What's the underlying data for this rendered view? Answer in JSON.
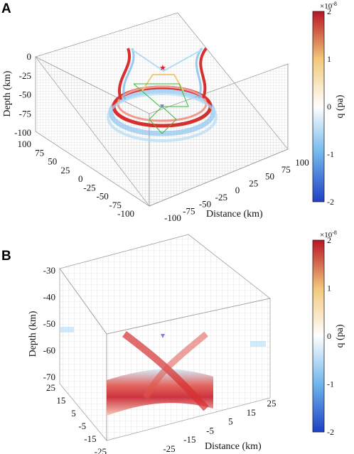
{
  "chart_data": [
    {
      "panel": "A",
      "type": "heatmap",
      "view": "3d-volume",
      "zlabel": "Depth (km)",
      "xlabel": "Distance (km)",
      "ylabel": "",
      "z_ticks": [
        "0",
        "-25",
        "-50",
        "-75",
        "-100"
      ],
      "y_ticks": [
        "100",
        "75",
        "50",
        "25",
        "0",
        "-25",
        "-50",
        "-75",
        "-100"
      ],
      "x_ticks": [
        "-100",
        "-75",
        "-50",
        "-25",
        "0",
        "25",
        "50",
        "75",
        "100"
      ],
      "xlim": [
        -100,
        100
      ],
      "ylim": [
        -100,
        100
      ],
      "zlim": [
        -100,
        0
      ],
      "colorbar": {
        "label": "q (pa)",
        "exponent": "×10",
        "exponent_power": "-8",
        "ticks": [
          "2",
          "1",
          "0",
          "-1",
          "-2"
        ],
        "range": [
          -2e-08,
          2e-08
        ],
        "colormap": [
          "#1f3fc4",
          "#6fb6ec",
          "#ffffff",
          "#f2c87a",
          "#b81425"
        ]
      },
      "markers": [
        {
          "symbol": "star",
          "color": "#e0191f"
        },
        {
          "symbol": "triangle",
          "color": "#7f7fd6"
        }
      ]
    },
    {
      "panel": "B",
      "type": "heatmap",
      "view": "3d-volume",
      "zlabel": "Depth (km)",
      "xlabel": "Distance (km)",
      "ylabel": "",
      "z_ticks": [
        "-30",
        "-40",
        "-50",
        "-60",
        "-70"
      ],
      "y_ticks": [
        "25",
        "15",
        "5",
        "-5",
        "-15",
        "-25"
      ],
      "x_ticks": [
        "-25",
        "-15",
        "-5",
        "5",
        "15",
        "25"
      ],
      "xlim": [
        -25,
        25
      ],
      "ylim": [
        -25,
        25
      ],
      "zlim": [
        -70,
        -30
      ],
      "colorbar": {
        "label": "q (pa)",
        "exponent": "×10",
        "exponent_power": "-8",
        "ticks": [
          "2",
          "1",
          "0",
          "-1",
          "-2"
        ],
        "range": [
          -2e-08,
          2e-08
        ],
        "colormap": [
          "#1f3fc4",
          "#6fb6ec",
          "#ffffff",
          "#f2c87a",
          "#b81425"
        ]
      },
      "markers": [
        {
          "symbol": "triangle",
          "color": "#7f7fd6"
        }
      ]
    }
  ]
}
